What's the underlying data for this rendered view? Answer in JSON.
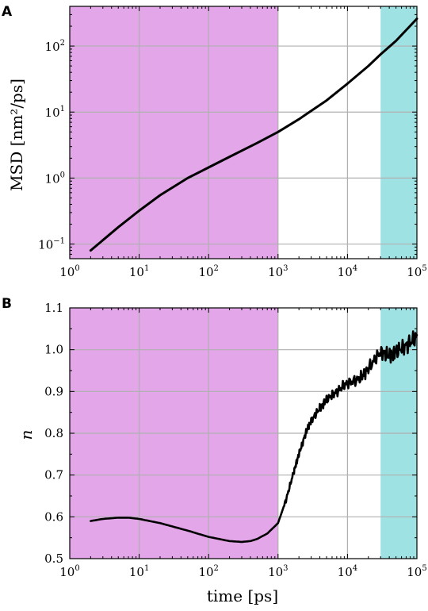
{
  "panels": {
    "a": {
      "letter": "A"
    },
    "b": {
      "letter": "B"
    }
  },
  "colors": {
    "region_1": "#e3a6e8",
    "region_2": "#9fe2e4",
    "line": "#000000",
    "grid": "#b0b0b0"
  },
  "chart_data": [
    {
      "type": "line",
      "panel": "A",
      "title": "",
      "xlabel": "",
      "ylabel": "MSD [nm²/ps]",
      "xscale": "log",
      "yscale": "log",
      "xlim": [
        1,
        100000
      ],
      "ylim": [
        0.06,
        400
      ],
      "grid": true,
      "x_ticks": [
        {
          "base": "10",
          "exp": "0",
          "value": 1
        },
        {
          "base": "10",
          "exp": "1",
          "value": 10
        },
        {
          "base": "10",
          "exp": "2",
          "value": 100
        },
        {
          "base": "10",
          "exp": "3",
          "value": 1000
        },
        {
          "base": "10",
          "exp": "4",
          "value": 10000
        },
        {
          "base": "10",
          "exp": "5",
          "value": 100000
        }
      ],
      "y_ticks": [
        {
          "base": "10",
          "exp": "−1",
          "value": 0.1
        },
        {
          "base": "10",
          "exp": "0",
          "value": 1
        },
        {
          "base": "10",
          "exp": "1",
          "value": 10
        },
        {
          "base": "10",
          "exp": "2",
          "value": 100
        }
      ],
      "shaded_regions": [
        {
          "x": [
            1,
            1000
          ],
          "color": "#e3a6e8"
        },
        {
          "x": [
            30000,
            100000
          ],
          "color": "#9fe2e4"
        }
      ],
      "series": [
        {
          "x": [
            2,
            5,
            10,
            20,
            50,
            100,
            200,
            500,
            1000,
            2000,
            5000,
            10000,
            20000,
            30000,
            50000,
            100000
          ],
          "y": [
            0.08,
            0.18,
            0.32,
            0.55,
            1.0,
            1.45,
            2.1,
            3.4,
            5.0,
            7.8,
            15,
            27,
            50,
            75,
            120,
            260
          ]
        }
      ]
    },
    {
      "type": "line",
      "panel": "B",
      "title": "",
      "xlabel": "time [ps]",
      "ylabel": "n",
      "xscale": "log",
      "yscale": "linear",
      "xlim": [
        1,
        100000
      ],
      "ylim": [
        0.5,
        1.1
      ],
      "grid": true,
      "x_ticks": [
        {
          "base": "10",
          "exp": "0",
          "value": 1
        },
        {
          "base": "10",
          "exp": "1",
          "value": 10
        },
        {
          "base": "10",
          "exp": "2",
          "value": 100
        },
        {
          "base": "10",
          "exp": "3",
          "value": 1000
        },
        {
          "base": "10",
          "exp": "4",
          "value": 10000
        },
        {
          "base": "10",
          "exp": "5",
          "value": 100000
        }
      ],
      "y_ticks": [
        {
          "label": "0.5",
          "value": 0.5
        },
        {
          "label": "0.6",
          "value": 0.6
        },
        {
          "label": "0.7",
          "value": 0.7
        },
        {
          "label": "0.8",
          "value": 0.8
        },
        {
          "label": "0.9",
          "value": 0.9
        },
        {
          "label": "1.0",
          "value": 1.0
        },
        {
          "label": "1.1",
          "value": 1.1
        }
      ],
      "shaded_regions": [
        {
          "x": [
            1,
            1000
          ],
          "color": "#e3a6e8"
        },
        {
          "x": [
            30000,
            100000
          ],
          "color": "#9fe2e4"
        }
      ],
      "series": [
        {
          "x": [
            2,
            3,
            5,
            7,
            10,
            20,
            50,
            100,
            200,
            300,
            400,
            500,
            700,
            1000,
            1300,
            1700,
            2000,
            2500,
            3000,
            4000,
            5000,
            7000,
            10000,
            15000,
            20000,
            30000,
            40000,
            50000,
            70000,
            100000
          ],
          "y": [
            0.59,
            0.595,
            0.598,
            0.598,
            0.595,
            0.585,
            0.567,
            0.552,
            0.542,
            0.54,
            0.542,
            0.547,
            0.56,
            0.585,
            0.64,
            0.71,
            0.75,
            0.8,
            0.83,
            0.86,
            0.88,
            0.9,
            0.92,
            0.93,
            0.955,
            0.995,
            0.985,
            0.995,
            1.01,
            1.03
          ]
        }
      ]
    }
  ]
}
